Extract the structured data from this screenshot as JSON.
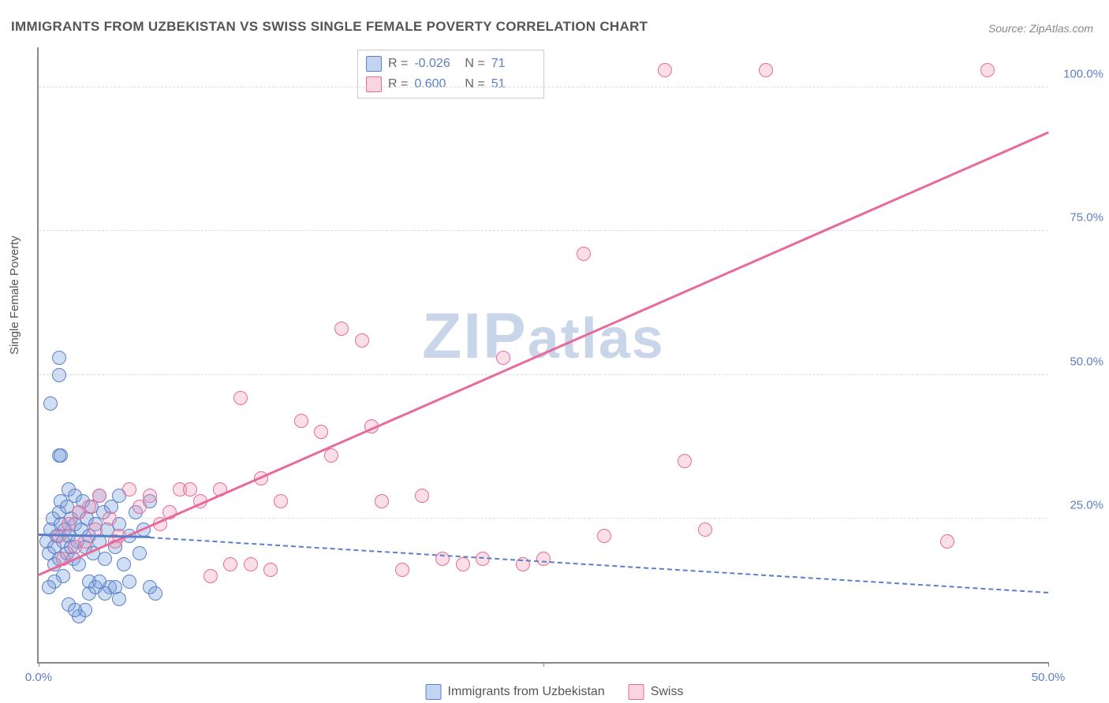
{
  "title": "IMMIGRANTS FROM UZBEKISTAN VS SWISS SINGLE FEMALE POVERTY CORRELATION CHART",
  "source": "Source: ZipAtlas.com",
  "y_axis_label": "Single Female Poverty",
  "watermark": "ZIPatlas",
  "chart": {
    "type": "scatter",
    "xlim": [
      0,
      50
    ],
    "ylim": [
      0,
      107
    ],
    "x_ticks": [
      0,
      25,
      50
    ],
    "x_tick_labels": [
      "0.0%",
      "",
      "50.0%"
    ],
    "y_ticks": [
      25,
      50,
      75,
      100
    ],
    "y_tick_labels": [
      "25.0%",
      "50.0%",
      "75.0%",
      "100.0%"
    ],
    "grid_color": "#dddddd",
    "axis_color": "#888888",
    "label_color": "#5b7fc7",
    "series": [
      {
        "name": "Immigrants from Uzbekistan",
        "color_fill": "rgba(120,160,220,0.35)",
        "color_stroke": "#5b7fc7",
        "R": "-0.026",
        "N": "71",
        "trend": {
          "x1": 0,
          "y1": 22,
          "x2": 5.5,
          "y2": 21.6,
          "style": "solid"
        },
        "trend_dashed": {
          "x1": 5.5,
          "y1": 21.6,
          "x2": 50,
          "y2": 12
        },
        "points": [
          [
            0.4,
            21
          ],
          [
            0.5,
            19
          ],
          [
            0.6,
            23
          ],
          [
            0.7,
            25
          ],
          [
            0.8,
            20
          ],
          [
            0.8,
            17
          ],
          [
            0.9,
            22
          ],
          [
            1.0,
            26
          ],
          [
            1.0,
            18
          ],
          [
            1.1,
            24
          ],
          [
            1.1,
            28
          ],
          [
            1.2,
            21
          ],
          [
            1.2,
            15
          ],
          [
            1.3,
            23
          ],
          [
            1.4,
            27
          ],
          [
            1.4,
            19
          ],
          [
            1.5,
            22
          ],
          [
            1.5,
            30
          ],
          [
            1.6,
            20
          ],
          [
            1.6,
            25
          ],
          [
            1.7,
            18
          ],
          [
            1.8,
            24
          ],
          [
            1.8,
            29
          ],
          [
            1.9,
            21
          ],
          [
            2.0,
            26
          ],
          [
            2.0,
            17
          ],
          [
            2.1,
            23
          ],
          [
            2.2,
            28
          ],
          [
            2.3,
            20
          ],
          [
            2.4,
            25
          ],
          [
            2.5,
            22
          ],
          [
            2.5,
            14
          ],
          [
            2.6,
            27
          ],
          [
            2.7,
            19
          ],
          [
            2.8,
            24
          ],
          [
            3.0,
            29
          ],
          [
            3.0,
            21
          ],
          [
            3.2,
            26
          ],
          [
            3.3,
            18
          ],
          [
            3.4,
            23
          ],
          [
            3.5,
            13
          ],
          [
            3.6,
            27
          ],
          [
            3.8,
            20
          ],
          [
            4.0,
            24
          ],
          [
            4.0,
            29
          ],
          [
            4.2,
            17
          ],
          [
            4.5,
            22
          ],
          [
            4.8,
            26
          ],
          [
            5.0,
            19
          ],
          [
            5.2,
            23
          ],
          [
            5.5,
            28
          ],
          [
            1.0,
            36
          ],
          [
            1.1,
            36
          ],
          [
            0.6,
            45
          ],
          [
            1.0,
            50
          ],
          [
            1.0,
            53
          ],
          [
            2.5,
            12
          ],
          [
            2.8,
            13
          ],
          [
            3.0,
            14
          ],
          [
            3.3,
            12
          ],
          [
            3.8,
            13
          ],
          [
            4.0,
            11
          ],
          [
            4.5,
            14
          ],
          [
            2.0,
            8
          ],
          [
            2.3,
            9
          ],
          [
            5.5,
            13
          ],
          [
            5.8,
            12
          ],
          [
            1.5,
            10
          ],
          [
            1.8,
            9
          ],
          [
            0.8,
            14
          ],
          [
            0.5,
            13
          ]
        ]
      },
      {
        "name": "Swiss",
        "color_fill": "rgba(240,150,180,0.3)",
        "color_stroke": "#e86a9a",
        "R": "0.600",
        "N": "51",
        "trend": {
          "x1": 0,
          "y1": 15,
          "x2": 50,
          "y2": 92,
          "style": "solid"
        },
        "points": [
          [
            1.0,
            22
          ],
          [
            1.2,
            18
          ],
          [
            1.5,
            24
          ],
          [
            1.8,
            20
          ],
          [
            2.0,
            26
          ],
          [
            2.3,
            21
          ],
          [
            2.5,
            27
          ],
          [
            2.8,
            23
          ],
          [
            3.0,
            29
          ],
          [
            3.5,
            25
          ],
          [
            4.0,
            22
          ],
          [
            4.5,
            30
          ],
          [
            5.0,
            27
          ],
          [
            5.5,
            29
          ],
          [
            6.0,
            24
          ],
          [
            7.0,
            30
          ],
          [
            8.0,
            28
          ],
          [
            9.0,
            30
          ],
          [
            10.0,
            46
          ],
          [
            11.0,
            32
          ],
          [
            12.0,
            28
          ],
          [
            13.0,
            42
          ],
          [
            14.0,
            40
          ],
          [
            14.5,
            36
          ],
          [
            15.0,
            58
          ],
          [
            16.0,
            56
          ],
          [
            16.5,
            41
          ],
          [
            17.0,
            28
          ],
          [
            18.0,
            16
          ],
          [
            19.0,
            29
          ],
          [
            20.0,
            18
          ],
          [
            21.0,
            17
          ],
          [
            22.0,
            18
          ],
          [
            23.0,
            53
          ],
          [
            24.0,
            17
          ],
          [
            25.0,
            18
          ],
          [
            27.0,
            71
          ],
          [
            28.0,
            22
          ],
          [
            31.0,
            103
          ],
          [
            32.0,
            35
          ],
          [
            33.0,
            23
          ],
          [
            36.0,
            103
          ],
          [
            45.0,
            21
          ],
          [
            47.0,
            103
          ],
          [
            10.5,
            17
          ],
          [
            11.5,
            16
          ],
          [
            9.5,
            17
          ],
          [
            8.5,
            15
          ],
          [
            7.5,
            30
          ],
          [
            6.5,
            26
          ],
          [
            3.8,
            21
          ]
        ]
      }
    ]
  },
  "bottom_legend": [
    {
      "swatch": "blue",
      "label": "Immigrants from Uzbekistan"
    },
    {
      "swatch": "pink",
      "label": "Swiss"
    }
  ]
}
